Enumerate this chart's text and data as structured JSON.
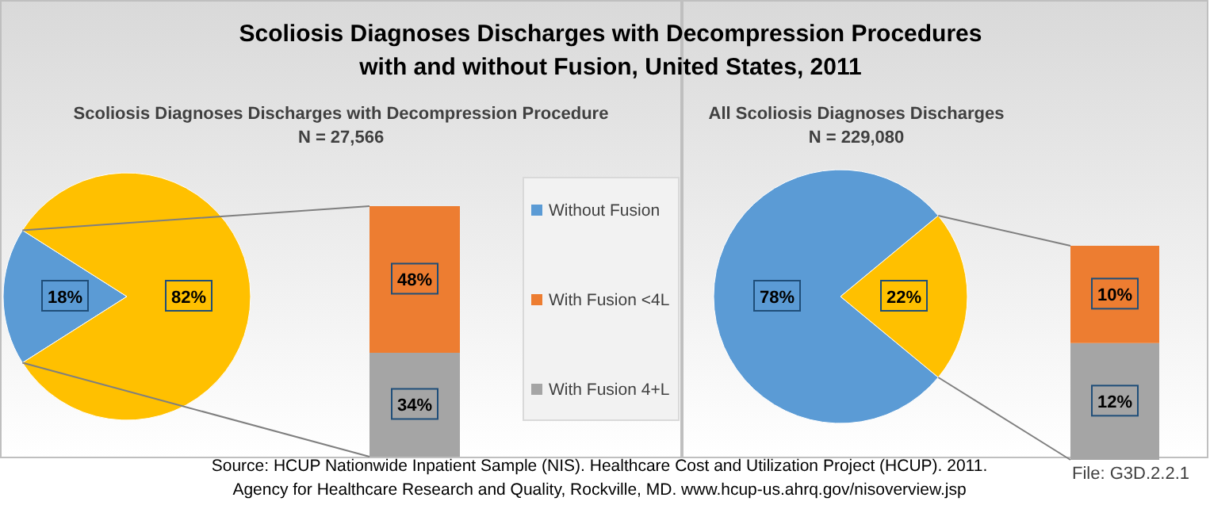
{
  "chart_data": [
    {
      "type": "pie",
      "title": "Scoliosis Diagnoses Discharges with Decompression Procedures with and without Fusion, United States, 2011",
      "subtitle": "Scoliosis Diagnoses Discharges with Decompression Procedure",
      "annotations": [
        "N = 27,566"
      ],
      "categories": [
        "Without Fusion",
        null
      ],
      "values": [
        18,
        82
      ],
      "colors": [
        "#5b9bd5",
        "#ffc000"
      ],
      "value_labels": [
        "18%",
        "82%"
      ],
      "legend": "right"
    },
    {
      "type": "bar",
      "stacked": true,
      "categories": [
        null
      ],
      "legend": "right",
      "annotations": [
        "Source: HCUP Nationwide Inpatient Sample (NIS). Healthcare Cost and Utilization Project (HCUP). 2011.",
        "Agency for Healthcare Research and Quality, Rockville, MD. www.hcup-us.ahrq.gov/nisoverview.jsp"
      ],
      "series": [
        {
          "name": "With Fusion 4+L",
          "color": "#a5a5a5",
          "values": [
            34
          ],
          "value_labels": [
            "34%"
          ]
        },
        {
          "name": "With Fusion <4L",
          "color": "#ed7d31",
          "values": [
            48
          ],
          "value_labels": [
            "48%"
          ]
        }
      ]
    },
    {
      "type": "pie",
      "subtitle": "All Scoliosis Diagnoses Discharges",
      "annotations": [
        "N = 229,080"
      ],
      "categories": [
        null,
        null
      ],
      "values": [
        78,
        22
      ],
      "colors": [
        "#5b9bd5",
        "#ffc000"
      ],
      "value_labels": [
        "78%",
        "22%"
      ]
    },
    {
      "type": "bar",
      "stacked": true,
      "categories": [
        null
      ],
      "annotations": [
        "File: G3D.2.2.1"
      ],
      "series": [
        {
          "name": "With Fusion 4+L",
          "color": "#a5a5a5",
          "values": [
            12
          ],
          "value_labels": [
            "12%"
          ]
        },
        {
          "name": "With Fusion <4L",
          "color": "#ed7d31",
          "values": [
            10
          ],
          "value_labels": [
            "10%"
          ]
        }
      ]
    }
  ]
}
